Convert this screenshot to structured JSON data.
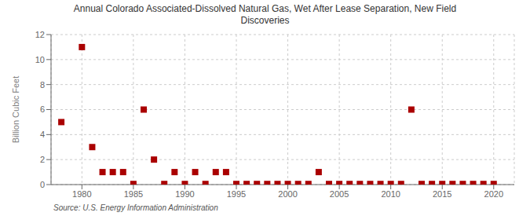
{
  "chart_data": {
    "type": "scatter",
    "title": "Annual Colorado Associated-Dissolved Natural Gas, Wet After Lease Separation, New Field\nDiscoveries",
    "ylabel": "Billion Cubic Feet",
    "source": "Source: U.S. Energy Information Administration",
    "x": [
      1978,
      1980,
      1981,
      1982,
      1983,
      1984,
      1985,
      1986,
      1987,
      1988,
      1989,
      1990,
      1991,
      1992,
      1993,
      1994,
      1995,
      1996,
      1997,
      1998,
      1999,
      2000,
      2001,
      2002,
      2003,
      2004,
      2005,
      2006,
      2007,
      2008,
      2009,
      2010,
      2011,
      2012,
      2013,
      2014,
      2015,
      2016,
      2017,
      2018,
      2019,
      2020
    ],
    "values": [
      5.0,
      11.0,
      3.0,
      1.0,
      1.0,
      1.0,
      0.05,
      6.0,
      2.0,
      0.05,
      1.0,
      0.05,
      1.0,
      0.05,
      1.0,
      1.0,
      0.05,
      0.05,
      0.05,
      0.05,
      0.05,
      0.05,
      0.05,
      0.05,
      1.0,
      0.05,
      0.05,
      0.05,
      0.05,
      0.05,
      0.05,
      0.05,
      0.05,
      6.0,
      0.05,
      0.05,
      0.05,
      0.05,
      0.05,
      0.05,
      0.05,
      0.05
    ],
    "color": "#aa0000",
    "marker": "square",
    "xlim": [
      1977,
      2022
    ],
    "ylim": [
      0,
      12
    ],
    "xticks": [
      1980,
      1985,
      1990,
      1995,
      2000,
      2005,
      2010,
      2015,
      2020
    ],
    "yticks": [
      0,
      2,
      4,
      6,
      8,
      10,
      12
    ],
    "grid": true
  }
}
